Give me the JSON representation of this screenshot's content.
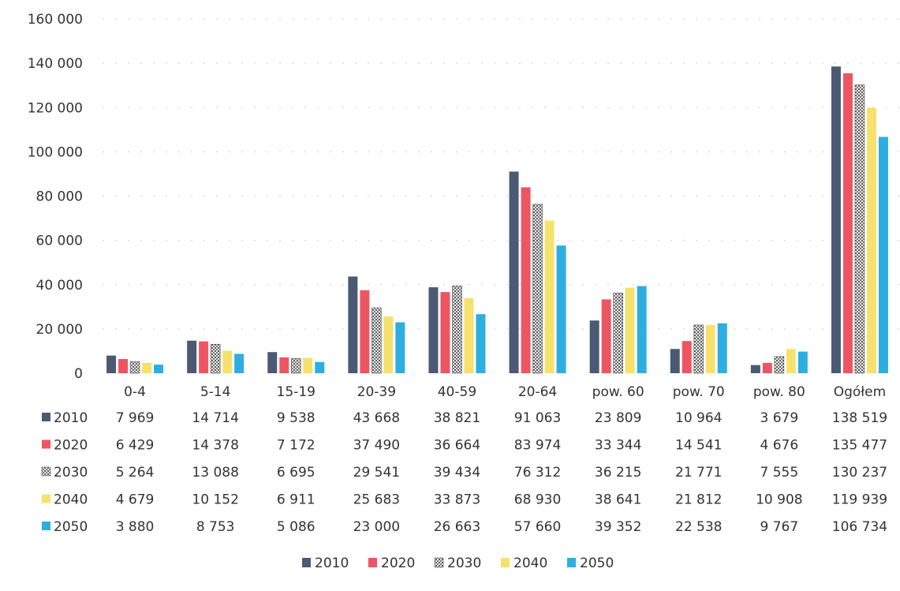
{
  "chart_data": {
    "type": "bar",
    "title": "",
    "xlabel": "",
    "ylabel": "",
    "ylim": [
      0,
      160000
    ],
    "yticks": [
      "0",
      "20 000",
      "40 000",
      "60 000",
      "80 000",
      "100 000",
      "120 000",
      "140 000",
      "160 000"
    ],
    "grid": true,
    "legend_position": "bottom",
    "data_table": true,
    "categories": [
      "0-4",
      "5-14",
      "15-19",
      "20-39",
      "40-59",
      "20-64",
      "pow. 60",
      "pow. 70",
      "pow. 80",
      "Ogółem"
    ],
    "series": [
      {
        "name": "2010",
        "color": "#4b5a72",
        "values": [
          7969,
          14714,
          9538,
          43668,
          38821,
          91063,
          23809,
          10964,
          3679,
          138519
        ],
        "labels": [
          "7 969",
          "14 714",
          "9 538",
          "43 668",
          "38 821",
          "91 063",
          "23 809",
          "10 964",
          "3 679",
          "138 519"
        ]
      },
      {
        "name": "2020",
        "color": "#ee5563",
        "values": [
          6429,
          14378,
          7172,
          37490,
          36664,
          83974,
          33344,
          14541,
          4676,
          135477
        ],
        "labels": [
          "6 429",
          "14 378",
          "7 172",
          "37 490",
          "36 664",
          "83 974",
          "33 344",
          "14 541",
          "4 676",
          "135 477"
        ]
      },
      {
        "name": "2030",
        "color": "#9a9a9a",
        "values": [
          5264,
          13088,
          6695,
          29541,
          39434,
          76312,
          36215,
          21771,
          7555,
          130237
        ],
        "labels": [
          "5 264",
          "13 088",
          "6 695",
          "29 541",
          "39 434",
          "76 312",
          "36 215",
          "21 771",
          "7 555",
          "130 237"
        ]
      },
      {
        "name": "2040",
        "color": "#f6e16e",
        "values": [
          4679,
          10152,
          6911,
          25683,
          33873,
          68930,
          38641,
          21812,
          10908,
          119939
        ],
        "labels": [
          "4 679",
          "10 152",
          "6 911",
          "25 683",
          "33 873",
          "68 930",
          "38 641",
          "21 812",
          "10 908",
          "119 939"
        ]
      },
      {
        "name": "2050",
        "color": "#2eaee0",
        "values": [
          3880,
          8753,
          5086,
          23000,
          26663,
          57660,
          39352,
          22538,
          9767,
          106734
        ],
        "labels": [
          "3 880",
          "8 753",
          "5 086",
          "23 000",
          "26 663",
          "57 660",
          "39 352",
          "22 538",
          "9 767",
          "106 734"
        ]
      }
    ]
  }
}
